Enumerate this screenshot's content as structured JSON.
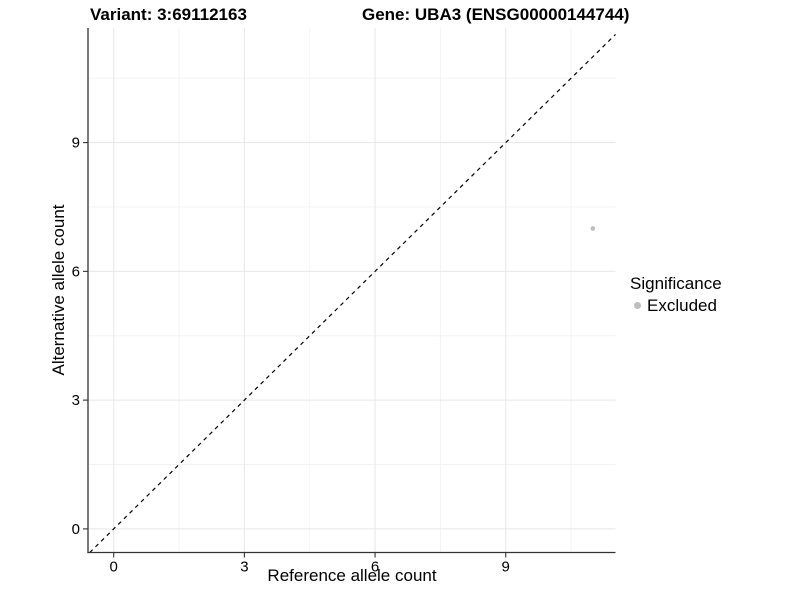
{
  "header": {
    "variant_title": "Variant: 3:69112163",
    "gene_title": "Gene: UBA3 (ENSG00000144744)"
  },
  "axes": {
    "x_title": "Reference allele count",
    "y_title": "Alternative allele count"
  },
  "legend": {
    "title": "Significance",
    "items": [
      {
        "label": "Excluded",
        "color": "#bebebe"
      }
    ]
  },
  "chart_data": {
    "type": "scatter",
    "title": "Variant: 3:69112163   Gene: UBA3 (ENSG00000144744)",
    "xlabel": "Reference allele count",
    "ylabel": "Alternative allele count",
    "xlim": [
      -0.59,
      11.52
    ],
    "ylim": [
      -0.55,
      11.67
    ],
    "xticks": [
      0,
      3,
      6,
      9
    ],
    "yticks": [
      0,
      3,
      6,
      9
    ],
    "xticks_minor": [
      1.5,
      4.5,
      7.5,
      10.5
    ],
    "yticks_minor": [
      1.5,
      4.5,
      7.5,
      10.5
    ],
    "grid": true,
    "legend_position": "right",
    "series": [
      {
        "name": "Excluded",
        "color": "#bebebe",
        "points": [
          {
            "x": 11,
            "y": 7
          }
        ]
      }
    ],
    "reference_line": {
      "type": "identity",
      "slope": 1,
      "intercept": 0,
      "style": "dashed",
      "color": "#000000"
    },
    "colors": {
      "axis_line": "#333333",
      "tick_mark": "#333333",
      "tick_text": "#000000",
      "grid_major": "#e7e7e7",
      "grid_minor": "#f2f2f2",
      "point": "#bebebe",
      "background": "#ffffff"
    }
  }
}
